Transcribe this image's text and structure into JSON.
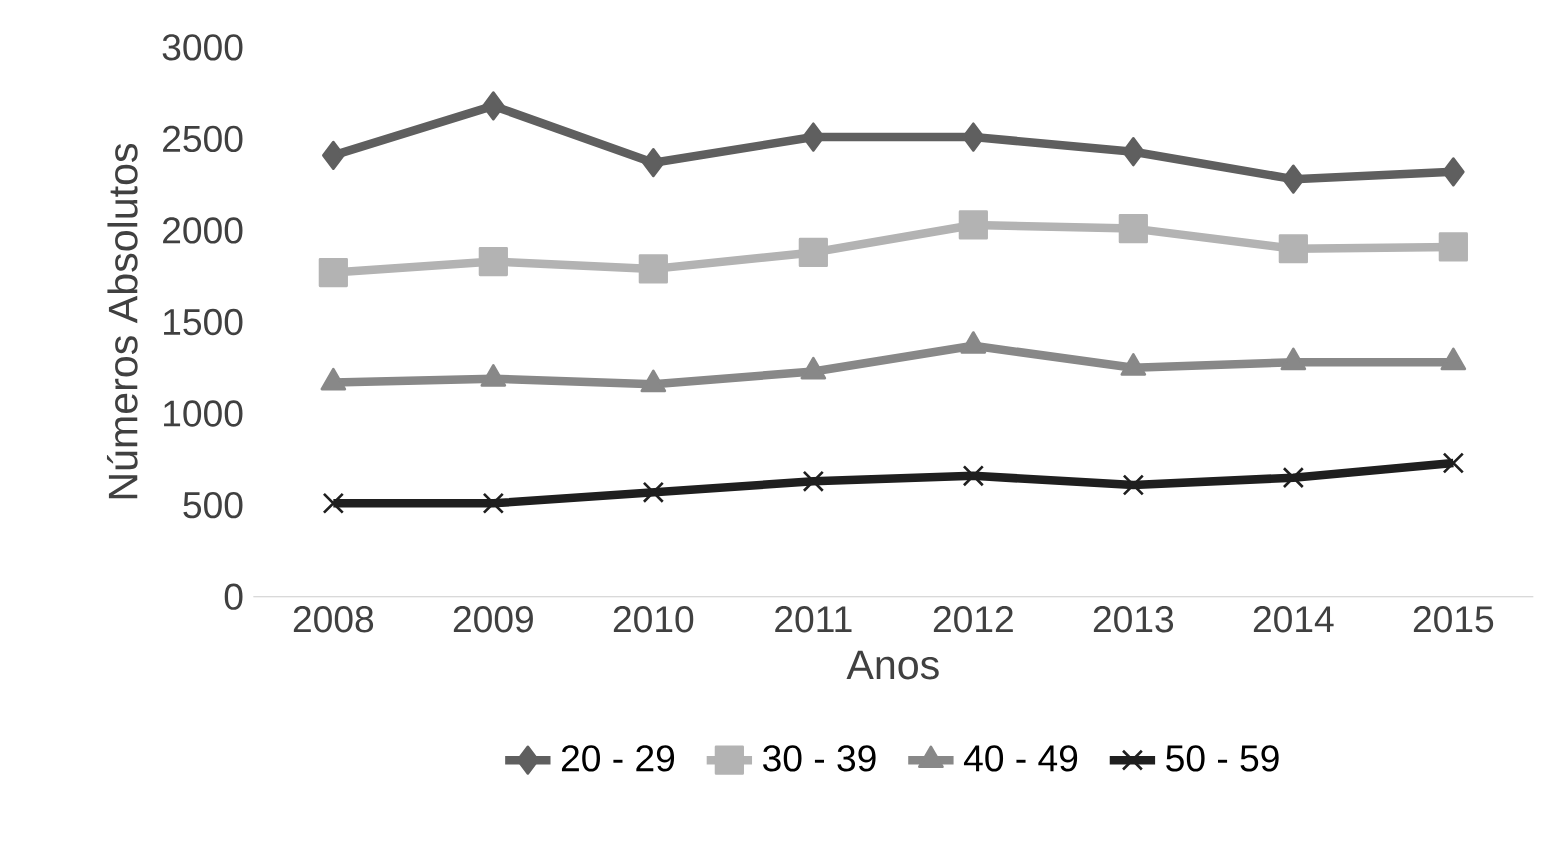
{
  "chart_data": {
    "type": "line",
    "xlabel": "Anos",
    "ylabel": "Números Absolutos",
    "categories": [
      "2008",
      "2009",
      "2010",
      "2011",
      "2012",
      "2013",
      "2014",
      "2015"
    ],
    "series": [
      {
        "name": "20 - 29",
        "color": "#5f5f5f",
        "marker": "diamond",
        "values": [
          2410,
          2680,
          2370,
          2510,
          2510,
          2430,
          2280,
          2320
        ]
      },
      {
        "name": "30 - 39",
        "color": "#b3b3b3",
        "marker": "square",
        "values": [
          1770,
          1830,
          1790,
          1880,
          2030,
          2010,
          1900,
          1910
        ]
      },
      {
        "name": "40 - 49",
        "color": "#888888",
        "marker": "triangle",
        "values": [
          1170,
          1190,
          1160,
          1230,
          1370,
          1250,
          1280,
          1280
        ]
      },
      {
        "name": "50 - 59",
        "color": "#1f1f1f",
        "marker": "cross",
        "values": [
          510,
          510,
          570,
          630,
          660,
          610,
          650,
          730
        ]
      }
    ],
    "ylim": [
      0,
      3000
    ],
    "yticks": [
      0,
      500,
      1000,
      1500,
      2000,
      2500,
      3000
    ],
    "legend": "bottom",
    "line_style": "solid"
  }
}
